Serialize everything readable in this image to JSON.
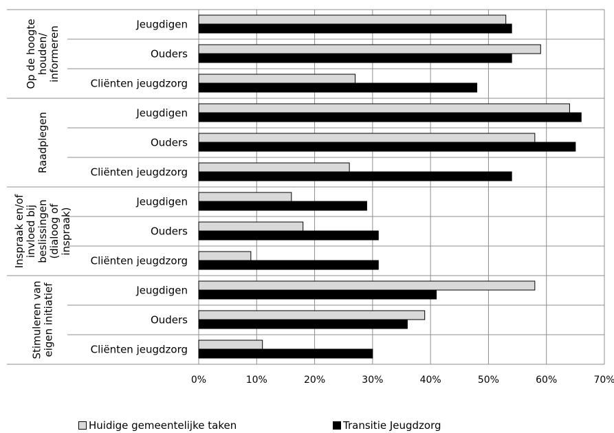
{
  "chart_data": {
    "type": "bar",
    "orientation": "horizontal",
    "title": "",
    "xlabel": "",
    "ylabel": "",
    "xlim": [
      0,
      70
    ],
    "x_tick_labels": [
      "0%",
      "10%",
      "20%",
      "30%",
      "40%",
      "50%",
      "60%",
      "70%"
    ],
    "grid": true,
    "legend_position": "bottom",
    "groups": [
      {
        "label": "Op de hoogte houden/ informeren",
        "label_lines": [
          "Op de hoogte",
          "houden/",
          "informeren"
        ]
      },
      {
        "label": "Raadplegen",
        "label_lines": [
          "Raadplegen"
        ]
      },
      {
        "label": "Inspraak en/of invloed bij beslissingen (dialoog of inspraak)",
        "label_lines": [
          "Inspraak en/of",
          "invloed bij",
          "beslissingen",
          "(dialoog of",
          "inspraak)"
        ]
      },
      {
        "label": "Stimuleren van eigen initiatief",
        "label_lines": [
          "Stimuleren van",
          "eigen initiatief"
        ]
      }
    ],
    "categories": [
      "Jeugdigen",
      "Ouders",
      "Cliënten jeugdzorg",
      "Jeugdigen",
      "Ouders",
      "Cliënten jeugdzorg",
      "Jeugdigen",
      "Ouders",
      "Cliënten jeugdzorg",
      "Jeugdigen",
      "Ouders",
      "Cliënten jeugdzorg"
    ],
    "series": [
      {
        "name": "Huidige gemeentelijke taken",
        "color": "#d9d9d9",
        "values": [
          53,
          59,
          27,
          64,
          58,
          26,
          16,
          18,
          9,
          58,
          39,
          11
        ]
      },
      {
        "name": "Transitie Jeugdzorg",
        "color": "#000000",
        "values": [
          54,
          54,
          48,
          66,
          65,
          54,
          29,
          31,
          31,
          41,
          36,
          30
        ]
      }
    ]
  }
}
